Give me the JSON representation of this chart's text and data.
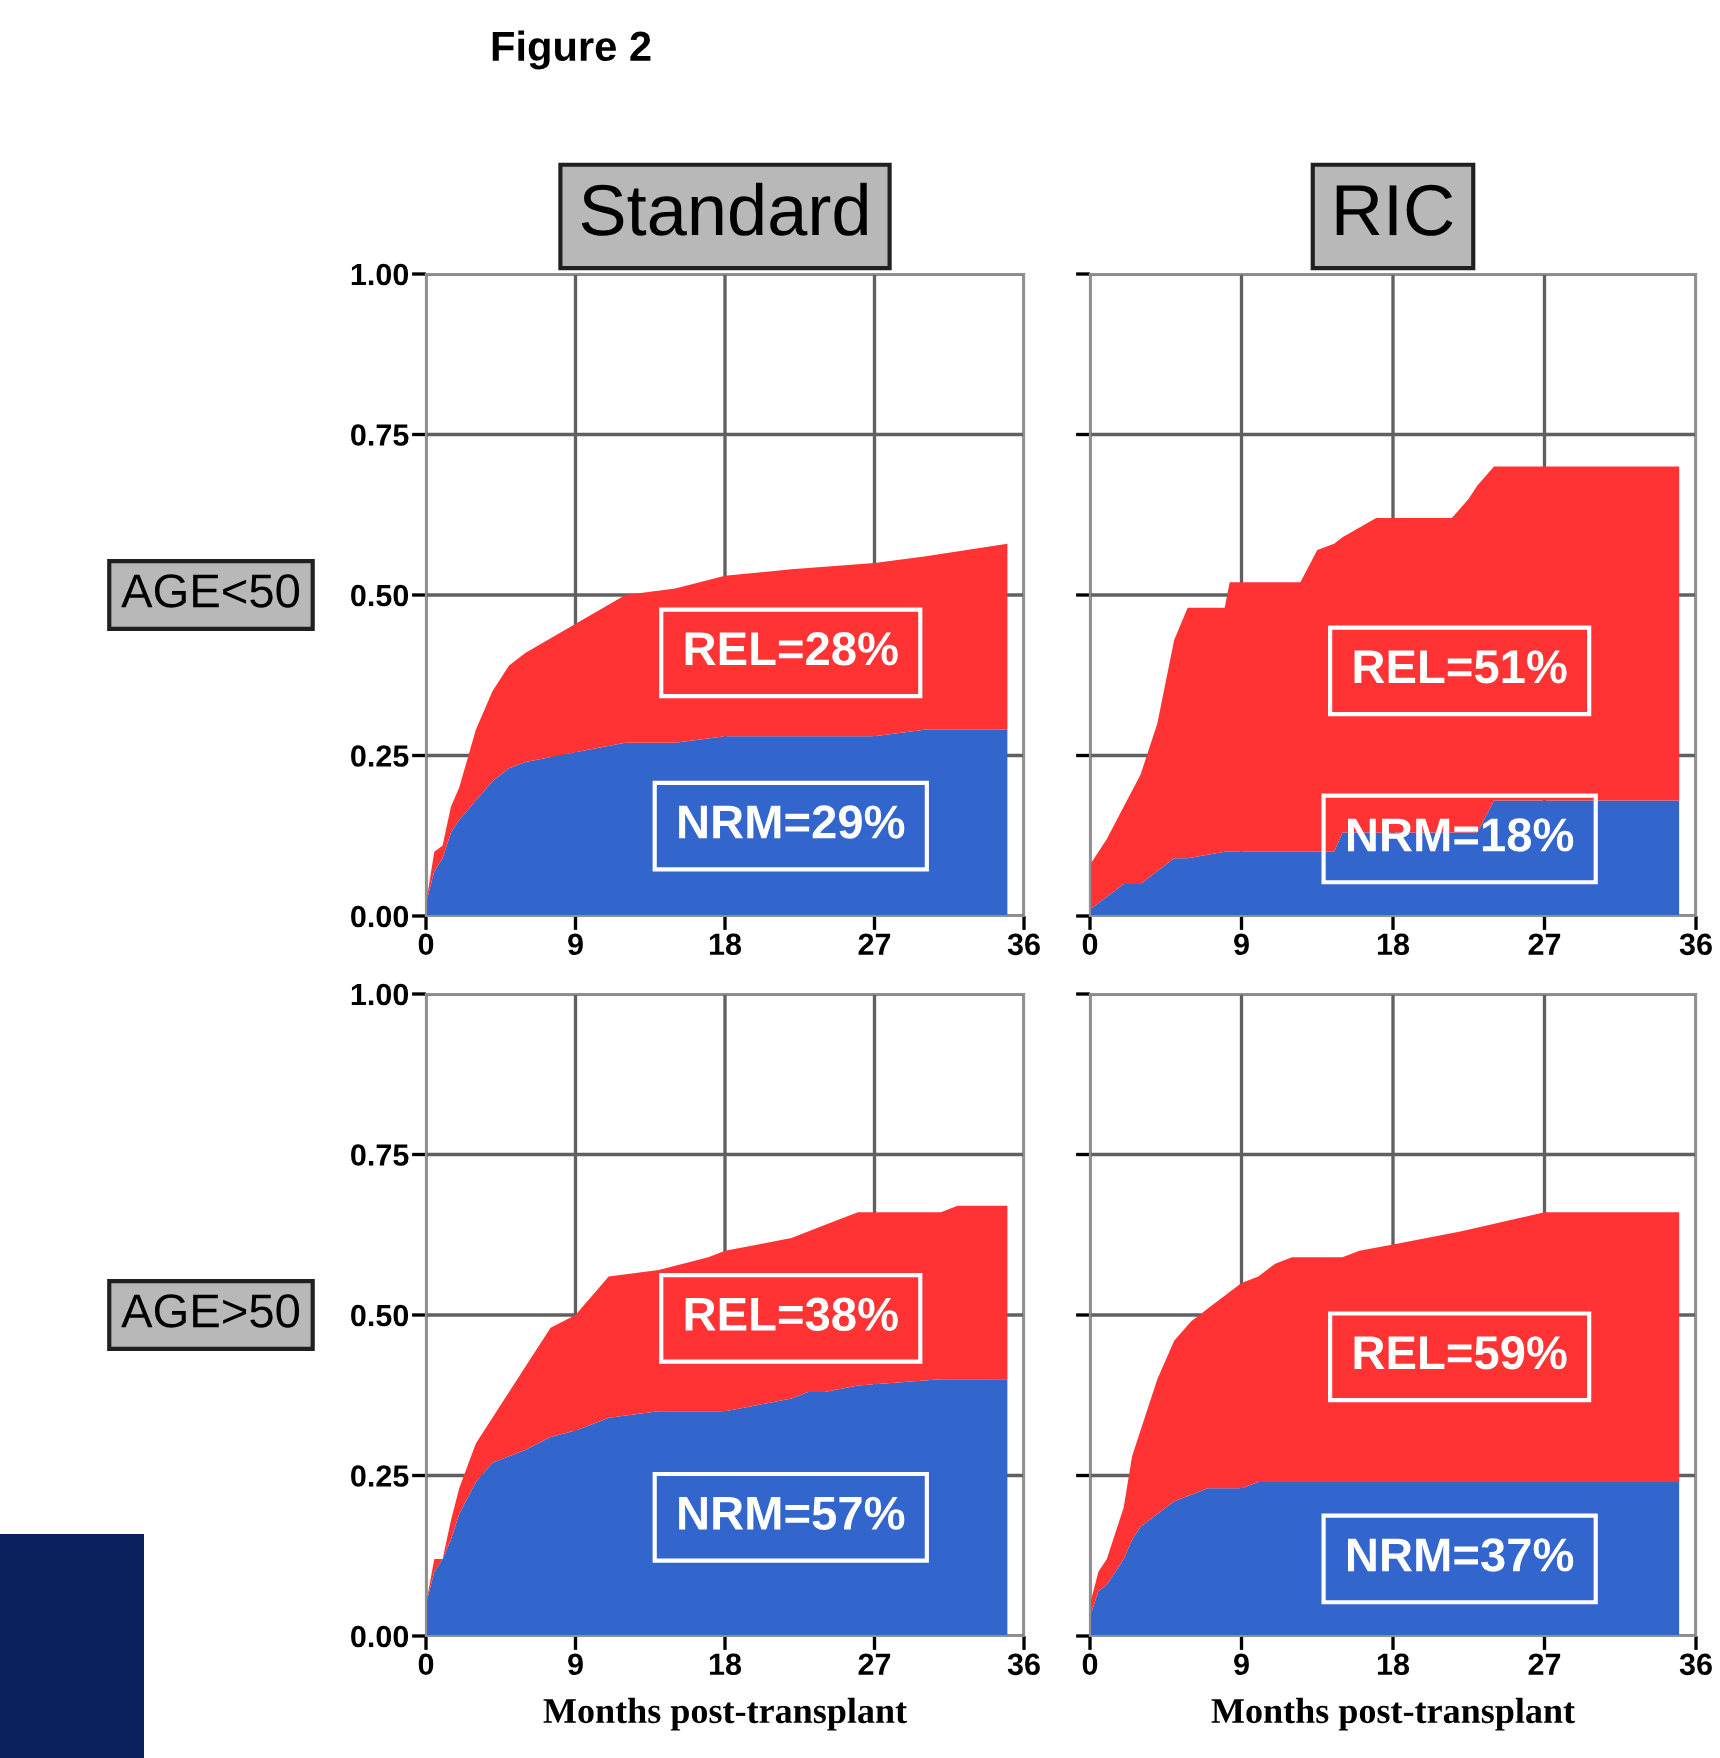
{
  "chart_data": [
    {
      "type": "area",
      "stacked": true,
      "title": "Standard",
      "ylabel": "AGE<50",
      "annotations": [
        "Figure 2",
        "REL=28%",
        "NRM=29%"
      ],
      "xlim": [
        0,
        36
      ],
      "xticks": [
        0,
        9,
        18,
        27,
        36
      ],
      "ylim": [
        0,
        1
      ],
      "yticks": [
        {
          "value": 0,
          "label": "0.00"
        },
        {
          "value": 0.25,
          "label": "0.25"
        },
        {
          "value": 0.5,
          "label": "0.50"
        },
        {
          "value": 0.75,
          "label": "0.75"
        },
        {
          "value": 1,
          "label": "1.00"
        }
      ],
      "grid": true,
      "x": [
        0,
        0.5,
        1,
        1.5,
        2,
        3,
        4,
        5,
        6,
        8,
        10,
        12,
        15,
        18,
        22,
        27,
        30,
        35
      ],
      "series": [
        {
          "color": "#3366cc",
          "values": [
            0.02,
            0.07,
            0.09,
            0.13,
            0.15,
            0.18,
            0.21,
            0.23,
            0.24,
            0.25,
            0.26,
            0.27,
            0.27,
            0.28,
            0.28,
            0.28,
            0.29,
            0.29
          ]
        },
        {
          "color": "#ff3333",
          "values": [
            0.0,
            0.03,
            0.02,
            0.04,
            0.05,
            0.11,
            0.14,
            0.16,
            0.17,
            0.19,
            0.21,
            0.23,
            0.24,
            0.25,
            0.26,
            0.27,
            0.27,
            0.29
          ]
        }
      ]
    },
    {
      "type": "area",
      "stacked": true,
      "title": "RIC",
      "annotations": [
        "REL=51%",
        "NRM=18%"
      ],
      "tick_labels": "x",
      "xlim": [
        0,
        36
      ],
      "xticks": [
        0,
        9,
        18,
        27,
        36
      ],
      "ylim": [
        0,
        1
      ],
      "yticks": [
        {
          "value": 0,
          "label": null
        },
        {
          "value": 0.25,
          "label": null
        },
        {
          "value": 0.5,
          "label": null
        },
        {
          "value": 0.75,
          "label": null
        },
        {
          "value": 1,
          "label": null
        }
      ],
      "grid": true,
      "x": [
        0,
        1,
        2,
        3,
        4,
        5,
        5.8,
        8,
        8.3,
        12.5,
        13.5,
        14.5,
        15,
        17,
        21.5,
        22.5,
        23,
        24,
        35
      ],
      "series": [
        {
          "color": "#3366cc",
          "values": [
            0.01,
            0.03,
            0.05,
            0.05,
            0.07,
            0.09,
            0.09,
            0.1,
            0.1,
            0.1,
            0.1,
            0.1,
            0.13,
            0.13,
            0.13,
            0.13,
            0.13,
            0.18,
            0.18
          ]
        },
        {
          "color": "#ff3333",
          "values": [
            0.07,
            0.09,
            0.12,
            0.17,
            0.23,
            0.34,
            0.39,
            0.38,
            0.42,
            0.42,
            0.47,
            0.48,
            0.46,
            0.49,
            0.49,
            0.52,
            0.54,
            0.52,
            0.52
          ]
        }
      ]
    },
    {
      "type": "area",
      "stacked": true,
      "ylabel": "AGE>50",
      "xlabel": "Months post-transplant",
      "annotations": [
        "REL=38%",
        "NRM=57%"
      ],
      "xlim": [
        0,
        36
      ],
      "xticks": [
        0,
        9,
        18,
        27,
        36
      ],
      "ylim": [
        0,
        1
      ],
      "yticks": [
        {
          "value": 0,
          "label": "0.00"
        },
        {
          "value": 0.25,
          "label": "0.25"
        },
        {
          "value": 0.5,
          "label": "0.50"
        },
        {
          "value": 0.75,
          "label": "0.75"
        },
        {
          "value": 1,
          "label": "1.00"
        }
      ],
      "grid": true,
      "x": [
        0,
        0.5,
        1,
        1.5,
        2,
        3,
        4,
        5,
        6,
        7.5,
        9,
        10,
        11,
        14,
        17,
        18,
        20,
        22,
        23,
        24,
        26,
        31,
        32,
        35
      ],
      "series": [
        {
          "color": "#3366cc",
          "values": [
            0.05,
            0.1,
            0.12,
            0.15,
            0.19,
            0.24,
            0.27,
            0.28,
            0.29,
            0.31,
            0.32,
            0.33,
            0.34,
            0.35,
            0.35,
            0.35,
            0.36,
            0.37,
            0.38,
            0.38,
            0.39,
            0.4,
            0.4,
            0.4
          ]
        },
        {
          "color": "#ff3333",
          "values": [
            0.0,
            0.02,
            0.0,
            0.03,
            0.04,
            0.06,
            0.07,
            0.1,
            0.13,
            0.17,
            0.18,
            0.2,
            0.22,
            0.22,
            0.24,
            0.25,
            0.25,
            0.25,
            0.25,
            0.26,
            0.27,
            0.26,
            0.27,
            0.27
          ]
        }
      ]
    },
    {
      "type": "area",
      "stacked": true,
      "xlabel": "Months post-transplant",
      "annotations": [
        "REL=59%",
        "NRM=37%"
      ],
      "tick_labels": "x",
      "xlim": [
        0,
        36
      ],
      "xticks": [
        0,
        9,
        18,
        27,
        36
      ],
      "ylim": [
        0,
        1
      ],
      "yticks": [
        {
          "value": 0,
          "label": null
        },
        {
          "value": 0.25,
          "label": null
        },
        {
          "value": 0.5,
          "label": null
        },
        {
          "value": 0.75,
          "label": null
        },
        {
          "value": 1,
          "label": null
        }
      ],
      "grid": true,
      "x": [
        0,
        0.5,
        1,
        2,
        2.5,
        3,
        4,
        5,
        6,
        7,
        8,
        9,
        10,
        11,
        12,
        15,
        16,
        18,
        22,
        27,
        35
      ],
      "series": [
        {
          "color": "#3366cc",
          "values": [
            0.03,
            0.07,
            0.08,
            0.12,
            0.15,
            0.17,
            0.19,
            0.21,
            0.22,
            0.23,
            0.23,
            0.23,
            0.24,
            0.24,
            0.24,
            0.24,
            0.24,
            0.24,
            0.24,
            0.24,
            0.24
          ]
        },
        {
          "color": "#ff3333",
          "values": [
            0.02,
            0.03,
            0.04,
            0.08,
            0.13,
            0.15,
            0.21,
            0.25,
            0.27,
            0.28,
            0.3,
            0.32,
            0.32,
            0.34,
            0.35,
            0.35,
            0.36,
            0.37,
            0.39,
            0.42,
            0.42
          ]
        }
      ]
    }
  ]
}
